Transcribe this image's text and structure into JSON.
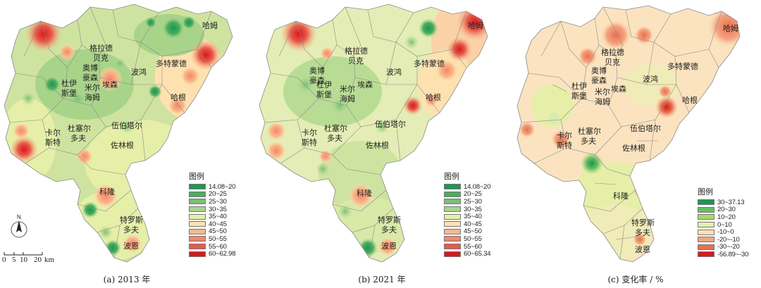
{
  "panels": [
    {
      "id": "a",
      "caption": "(a) 2013 年",
      "legend_title": "图例",
      "legend": [
        {
          "label": "14.08~20",
          "color": "#1a9850"
        },
        {
          "label": "20~25",
          "color": "#4bae5e"
        },
        {
          "label": "25~30",
          "color": "#79c072"
        },
        {
          "label": "30~35",
          "color": "#a8d48a"
        },
        {
          "label": "35~40",
          "color": "#e6efa8"
        },
        {
          "label": "40~45",
          "color": "#fde2b0"
        },
        {
          "label": "45~50",
          "color": "#fbb88a"
        },
        {
          "label": "50~55",
          "color": "#f4876a"
        },
        {
          "label": "55~60",
          "color": "#e85a4a"
        },
        {
          "label": "60~62.98",
          "color": "#d7191c"
        }
      ]
    },
    {
      "id": "b",
      "caption": "(b) 2021 年",
      "legend_title": "图例",
      "legend": [
        {
          "label": "14.08~20",
          "color": "#1a9850"
        },
        {
          "label": "20~25",
          "color": "#4bae5e"
        },
        {
          "label": "25~30",
          "color": "#79c072"
        },
        {
          "label": "30~35",
          "color": "#a8d48a"
        },
        {
          "label": "35~40",
          "color": "#e6efa8"
        },
        {
          "label": "40~45",
          "color": "#fde2b0"
        },
        {
          "label": "45~50",
          "color": "#fbb88a"
        },
        {
          "label": "50~55",
          "color": "#f4876a"
        },
        {
          "label": "55~60",
          "color": "#e85a4a"
        },
        {
          "label": "60~65.34",
          "color": "#d7191c"
        }
      ]
    },
    {
      "id": "c",
      "caption": "(c) 变化率 / %",
      "legend_title": "图例",
      "legend": [
        {
          "label": "30~37.13",
          "color": "#1a9850"
        },
        {
          "label": "20~30",
          "color": "#66bd63"
        },
        {
          "label": "10~20",
          "color": "#a6d96a"
        },
        {
          "label": "0~10",
          "color": "#e6efa8"
        },
        {
          "label": "-10~0",
          "color": "#fde2b0"
        },
        {
          "label": "-20~-10",
          "color": "#f4a582"
        },
        {
          "label": "-30~-20",
          "color": "#e8704f"
        },
        {
          "label": "-56.89~-30",
          "color": "#d7191c"
        }
      ]
    }
  ],
  "cities": {
    "hamm": "哈姆",
    "gladbeck_1": "格拉德",
    "gladbeck_2": "贝克",
    "dortmund": "多特蒙德",
    "bottrop_1": "奥博",
    "bottrop_2": "豪森",
    "bochum": "波鸿",
    "duisburg_1": "杜伊",
    "duisburg_2": "斯堡",
    "mulheim_1": "米尔",
    "mulheim_2": "海姆",
    "essen": "埃森",
    "hagen": "哈根",
    "wuppertal": "伍伯塔尔",
    "krefeld_1": "卡尔",
    "krefeld_2": "斯特",
    "dusseldorf_1": "杜塞尔",
    "dusseldorf_2": "多夫",
    "solingen": "佐林根",
    "cologne": "科隆",
    "troisdorf_1": "特罗斯",
    "troisdorf_2": "多夫",
    "bonn": "波恩"
  },
  "north_label": "N",
  "scale_bar": {
    "ticks": [
      "0",
      "5",
      "10",
      "20"
    ],
    "unit": "km"
  },
  "colors": {
    "boundary": "#8a8a8a",
    "base_a": "#cfe3a0",
    "base_b": "#e4edb5",
    "base_c": "#fbe3c0"
  }
}
